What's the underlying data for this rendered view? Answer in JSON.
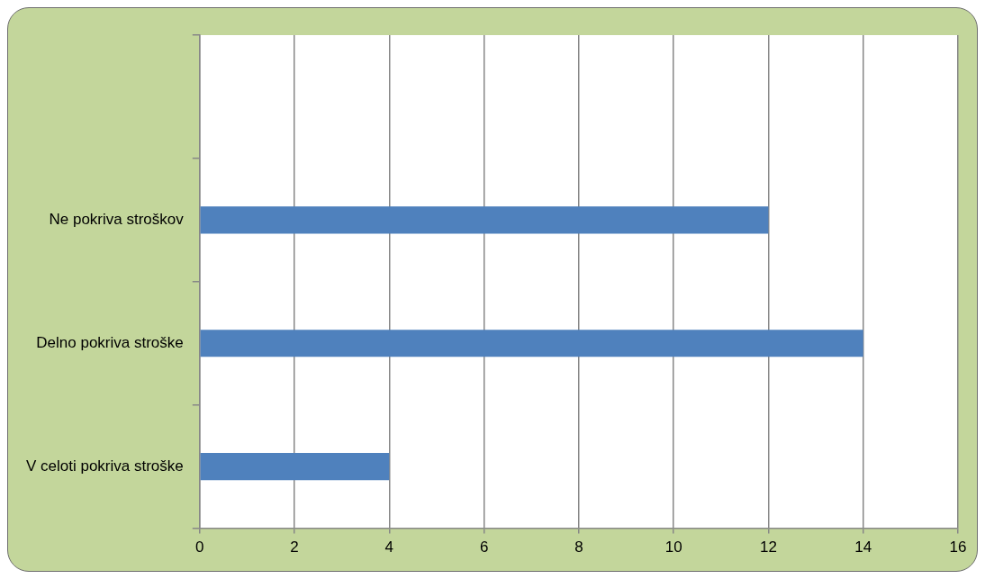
{
  "chart_data": {
    "type": "bar",
    "orientation": "horizontal",
    "categories": [
      null,
      "Ne pokriva stroškov",
      "Delno pokriva stroške",
      "V celoti pokriva stroške"
    ],
    "values": [
      null,
      12,
      14,
      4
    ],
    "color": "#4f81bd",
    "xlim": [
      0,
      16
    ],
    "xticks": [
      0,
      2,
      4,
      6,
      8,
      10,
      12,
      14,
      16
    ],
    "grid": "x",
    "legend": false
  }
}
